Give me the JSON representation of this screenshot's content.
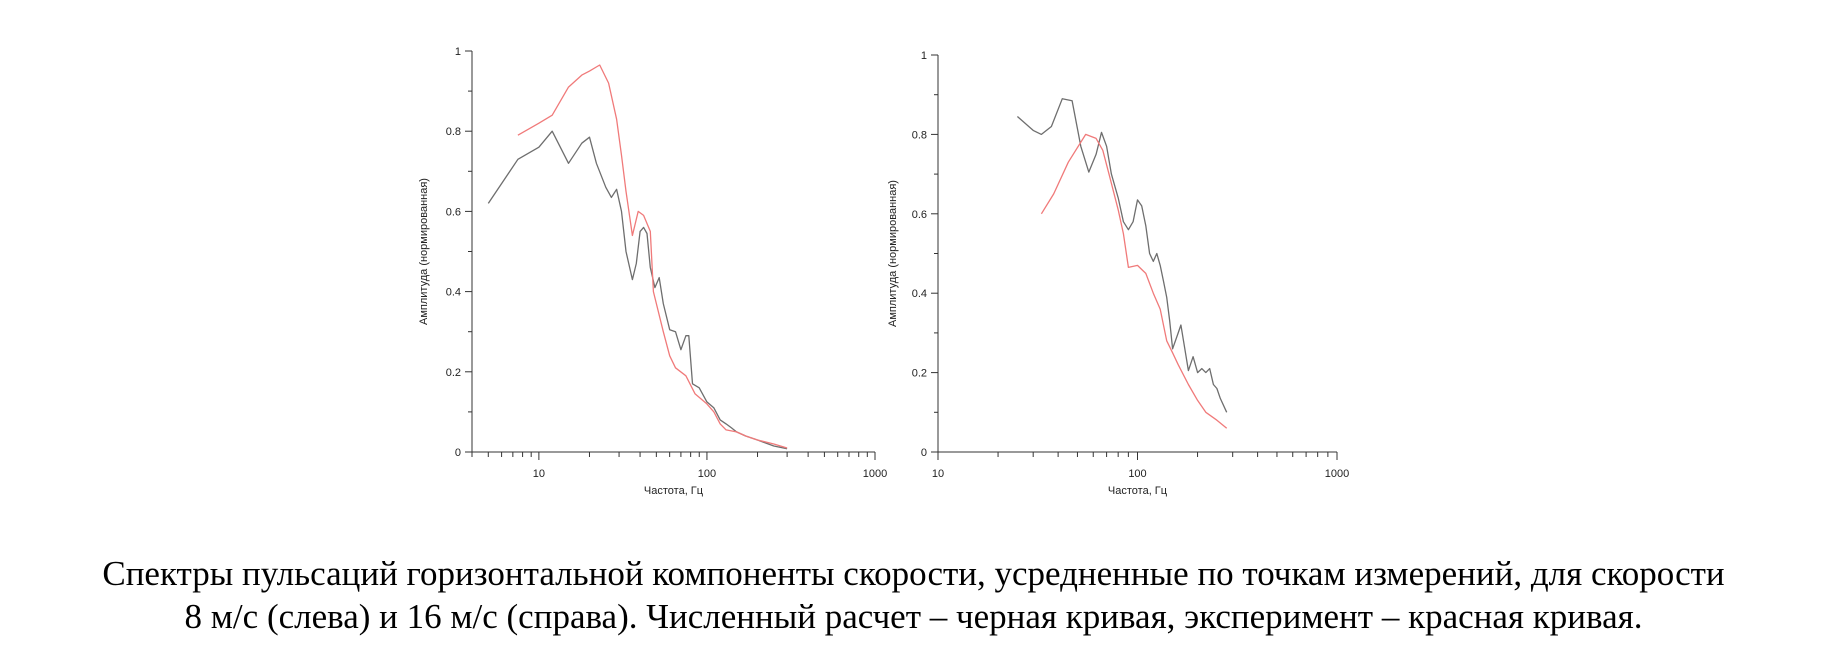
{
  "chart_data": [
    {
      "type": "line",
      "xscale": "log",
      "xlim": [
        4,
        1000
      ],
      "ylim": [
        0,
        1
      ],
      "xlabel": "Частота, Гц",
      "ylabel": "Амплитуда (нормированная)",
      "xtick_labels": [
        "10",
        "100",
        "1000"
      ],
      "ytick_labels": [
        "0",
        "0.2",
        "0.4",
        "0.6",
        "0.8",
        "1"
      ],
      "series": [
        {
          "color": "#6e6e6e",
          "points": [
            [
              5,
              0.62
            ],
            [
              7.5,
              0.73
            ],
            [
              10,
              0.76
            ],
            [
              12,
              0.8
            ],
            [
              15,
              0.72
            ],
            [
              18,
              0.77
            ],
            [
              20,
              0.785
            ],
            [
              22,
              0.72
            ],
            [
              25,
              0.66
            ],
            [
              27,
              0.635
            ],
            [
              29,
              0.655
            ],
            [
              31,
              0.6
            ],
            [
              33,
              0.5
            ],
            [
              36,
              0.43
            ],
            [
              38,
              0.47
            ],
            [
              40,
              0.55
            ],
            [
              42,
              0.56
            ],
            [
              44,
              0.545
            ],
            [
              46,
              0.46
            ],
            [
              49,
              0.41
            ],
            [
              52,
              0.435
            ],
            [
              55,
              0.37
            ],
            [
              60,
              0.305
            ],
            [
              65,
              0.3
            ],
            [
              70,
              0.255
            ],
            [
              75,
              0.29
            ],
            [
              78,
              0.29
            ],
            [
              82,
              0.17
            ],
            [
              90,
              0.16
            ],
            [
              100,
              0.125
            ],
            [
              110,
              0.11
            ],
            [
              120,
              0.08
            ],
            [
              130,
              0.07
            ],
            [
              140,
              0.06
            ],
            [
              150,
              0.05
            ],
            [
              170,
              0.04
            ],
            [
              200,
              0.03
            ],
            [
              250,
              0.015
            ],
            [
              300,
              0.008
            ]
          ]
        },
        {
          "color": "#f07a7a",
          "points": [
            [
              7.5,
              0.79
            ],
            [
              10,
              0.82
            ],
            [
              12,
              0.84
            ],
            [
              15,
              0.91
            ],
            [
              18,
              0.94
            ],
            [
              20,
              0.95
            ],
            [
              23,
              0.965
            ],
            [
              26,
              0.92
            ],
            [
              29,
              0.83
            ],
            [
              31,
              0.74
            ],
            [
              33,
              0.65
            ],
            [
              36,
              0.54
            ],
            [
              39,
              0.6
            ],
            [
              42,
              0.59
            ],
            [
              46,
              0.55
            ],
            [
              48,
              0.4
            ],
            [
              55,
              0.3
            ],
            [
              60,
              0.24
            ],
            [
              65,
              0.21
            ],
            [
              75,
              0.19
            ],
            [
              85,
              0.145
            ],
            [
              100,
              0.12
            ],
            [
              110,
              0.1
            ],
            [
              120,
              0.07
            ],
            [
              130,
              0.055
            ],
            [
              150,
              0.05
            ],
            [
              170,
              0.04
            ],
            [
              200,
              0.03
            ],
            [
              250,
              0.02
            ],
            [
              300,
              0.01
            ]
          ]
        }
      ]
    },
    {
      "type": "line",
      "xscale": "log",
      "xlim": [
        10,
        1000
      ],
      "ylim": [
        0,
        1
      ],
      "xlabel": "Частота, Гц",
      "ylabel": "Амплитуда (нормированная)",
      "xtick_labels": [
        "10",
        "100",
        "1000"
      ],
      "ytick_labels": [
        "0",
        "0.2",
        "0.4",
        "0.6",
        "0.8",
        "1"
      ],
      "series": [
        {
          "color": "#6e6e6e",
          "points": [
            [
              25,
              0.845
            ],
            [
              30,
              0.81
            ],
            [
              33,
              0.8
            ],
            [
              37,
              0.82
            ],
            [
              42,
              0.89
            ],
            [
              47,
              0.885
            ],
            [
              52,
              0.77
            ],
            [
              57,
              0.705
            ],
            [
              62,
              0.75
            ],
            [
              66,
              0.805
            ],
            [
              70,
              0.77
            ],
            [
              74,
              0.7
            ],
            [
              80,
              0.64
            ],
            [
              85,
              0.58
            ],
            [
              90,
              0.56
            ],
            [
              95,
              0.58
            ],
            [
              100,
              0.635
            ],
            [
              105,
              0.62
            ],
            [
              110,
              0.57
            ],
            [
              115,
              0.5
            ],
            [
              120,
              0.48
            ],
            [
              125,
              0.5
            ],
            [
              130,
              0.47
            ],
            [
              135,
              0.43
            ],
            [
              140,
              0.39
            ],
            [
              145,
              0.33
            ],
            [
              150,
              0.26
            ],
            [
              160,
              0.3
            ],
            [
              165,
              0.32
            ],
            [
              170,
              0.28
            ],
            [
              180,
              0.205
            ],
            [
              190,
              0.24
            ],
            [
              200,
              0.2
            ],
            [
              210,
              0.21
            ],
            [
              220,
              0.2
            ],
            [
              230,
              0.21
            ],
            [
              240,
              0.17
            ],
            [
              250,
              0.16
            ],
            [
              260,
              0.135
            ],
            [
              280,
              0.1
            ]
          ]
        },
        {
          "color": "#f07a7a",
          "points": [
            [
              33,
              0.6
            ],
            [
              38,
              0.65
            ],
            [
              45,
              0.73
            ],
            [
              55,
              0.8
            ],
            [
              62,
              0.79
            ],
            [
              67,
              0.76
            ],
            [
              72,
              0.7
            ],
            [
              80,
              0.61
            ],
            [
              85,
              0.55
            ],
            [
              90,
              0.465
            ],
            [
              100,
              0.47
            ],
            [
              110,
              0.45
            ],
            [
              120,
              0.4
            ],
            [
              130,
              0.36
            ],
            [
              140,
              0.28
            ],
            [
              150,
              0.25
            ],
            [
              160,
              0.22
            ],
            [
              180,
              0.17
            ],
            [
              200,
              0.13
            ],
            [
              220,
              0.1
            ],
            [
              250,
              0.08
            ],
            [
              280,
              0.06
            ]
          ]
        }
      ]
    }
  ],
  "caption": {
    "line1": "Спектры пульсаций горизонтальной компоненты скорости, усредненные по точкам измерений, для скорости",
    "line2": "8 м/с (слева) и 16 м/с (справа). Численный расчет – черная кривая, эксперимент – красная кривая."
  }
}
